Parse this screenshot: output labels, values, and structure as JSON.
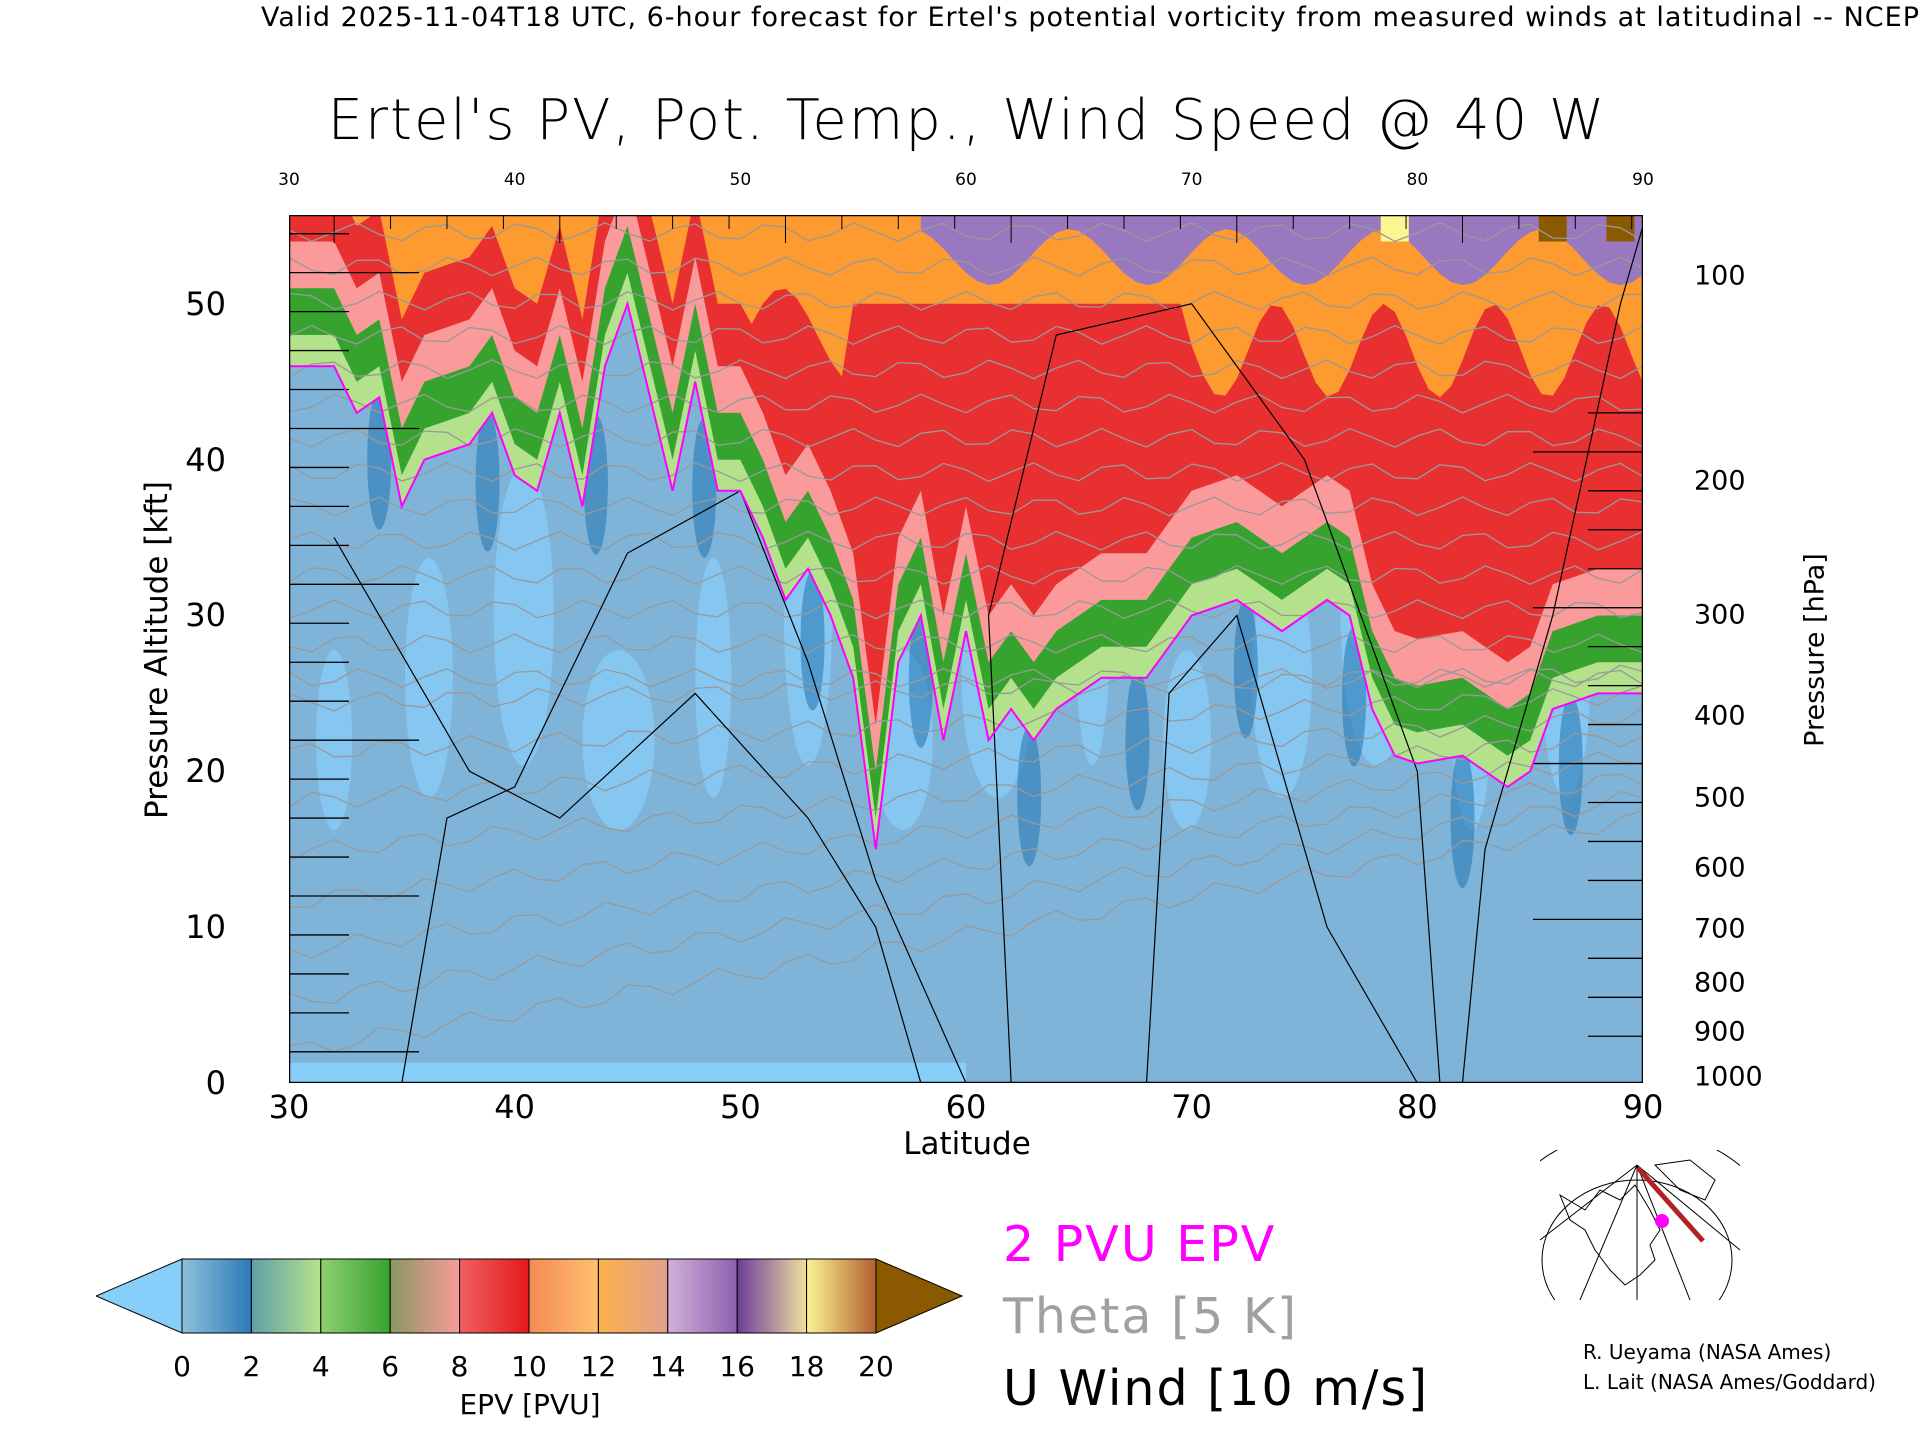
{
  "header": {
    "top_line": "Valid 2025-11-04T18 UTC, 6-hour forecast for Ertel's potential vorticity from measured winds at latitudinal -- NCEP",
    "title": "Ertel's PV, Pot. Temp., Wind Speed @ 40 W"
  },
  "chart_data": {
    "type": "heatmap",
    "title": "Ertel's PV, Pot. Temp., Wind Speed @ 40 W",
    "xlabel": "Latitude",
    "ylabel": "Pressure Altitude [kft]",
    "ylabel_right": "Pressure [hPa]",
    "xlim": [
      30,
      90
    ],
    "ylim": [
      0,
      55.7
    ],
    "x_ticks": [
      "30",
      "40",
      "50",
      "60",
      "70",
      "80",
      "90"
    ],
    "x_tick_values": [
      30,
      40,
      50,
      60,
      70,
      80,
      90
    ],
    "y_ticks": [
      "0",
      "10",
      "20",
      "30",
      "40",
      "50"
    ],
    "y_tick_values": [
      0,
      10,
      20,
      30,
      40,
      50
    ],
    "pressure_ticks": [
      "100",
      "200",
      "300",
      "400",
      "500",
      "600",
      "700",
      "800",
      "900",
      "1000"
    ],
    "pressure_tick_values": [
      100,
      200,
      300,
      400,
      500,
      600,
      700,
      800,
      900,
      1000
    ],
    "pv2_contour_kft": [
      [
        30,
        46
      ],
      [
        32,
        46
      ],
      [
        33,
        43
      ],
      [
        34,
        44
      ],
      [
        35,
        37
      ],
      [
        36,
        40
      ],
      [
        38,
        41
      ],
      [
        39,
        43
      ],
      [
        40,
        39
      ],
      [
        41,
        38
      ],
      [
        42,
        43
      ],
      [
        43,
        37
      ],
      [
        44,
        46
      ],
      [
        45,
        50
      ],
      [
        46,
        44
      ],
      [
        47,
        38
      ],
      [
        48,
        45
      ],
      [
        49,
        38
      ],
      [
        50,
        38
      ],
      [
        51,
        35
      ],
      [
        52,
        31
      ],
      [
        53,
        33
      ],
      [
        54,
        30
      ],
      [
        55,
        26
      ],
      [
        56,
        15
      ],
      [
        57,
        27
      ],
      [
        58,
        30
      ],
      [
        59,
        22
      ],
      [
        60,
        29
      ],
      [
        61,
        22
      ],
      [
        62,
        24
      ],
      [
        63,
        22
      ],
      [
        64,
        24
      ],
      [
        66,
        26
      ],
      [
        68,
        26
      ],
      [
        70,
        30
      ],
      [
        72,
        31
      ],
      [
        74,
        29
      ],
      [
        76,
        31
      ],
      [
        77,
        30
      ],
      [
        78,
        24
      ],
      [
        79,
        21
      ],
      [
        80,
        20.5
      ],
      [
        82,
        21
      ],
      [
        84,
        19
      ],
      [
        85,
        20
      ],
      [
        86,
        24
      ],
      [
        88,
        25
      ],
      [
        90,
        25
      ]
    ],
    "colorbar": {
      "label": "EPV [PVU]",
      "ticks": [
        "0",
        "2",
        "4",
        "6",
        "8",
        "10",
        "12",
        "14",
        "16",
        "18",
        "20"
      ],
      "range": [
        0,
        20
      ],
      "under_color": "#87cefa",
      "over_color": "#8b5a00",
      "segments": [
        [
          "#8fbfdc",
          "#2a7ab8"
        ],
        [
          "#5fa0a8",
          "#b4e28c"
        ],
        [
          "#8fd070",
          "#36a32e"
        ],
        [
          "#8a9860",
          "#fa9a9a"
        ],
        [
          "#ef6060",
          "#e31a1c"
        ],
        [
          "#f58a55",
          "#fdc06f"
        ],
        [
          "#fdb04a",
          "#e0a090"
        ],
        [
          "#d0b0d8",
          "#8c60b0"
        ],
        [
          "#6a3d9a",
          "#f0e0a0"
        ],
        [
          "#fbf592",
          "#b06030"
        ]
      ]
    },
    "legend": {
      "pv": "2 PVU EPV",
      "theta": "Theta [5 K]",
      "wind": "U Wind [10 m/s]",
      "pv_color": "#ff00ff",
      "theta_color": "#a0a0a0",
      "wind_color": "#000000"
    }
  },
  "credits": {
    "line1": "R. Ueyama (NASA Ames)",
    "line2": "L. Lait (NASA Ames/Goddard)"
  }
}
